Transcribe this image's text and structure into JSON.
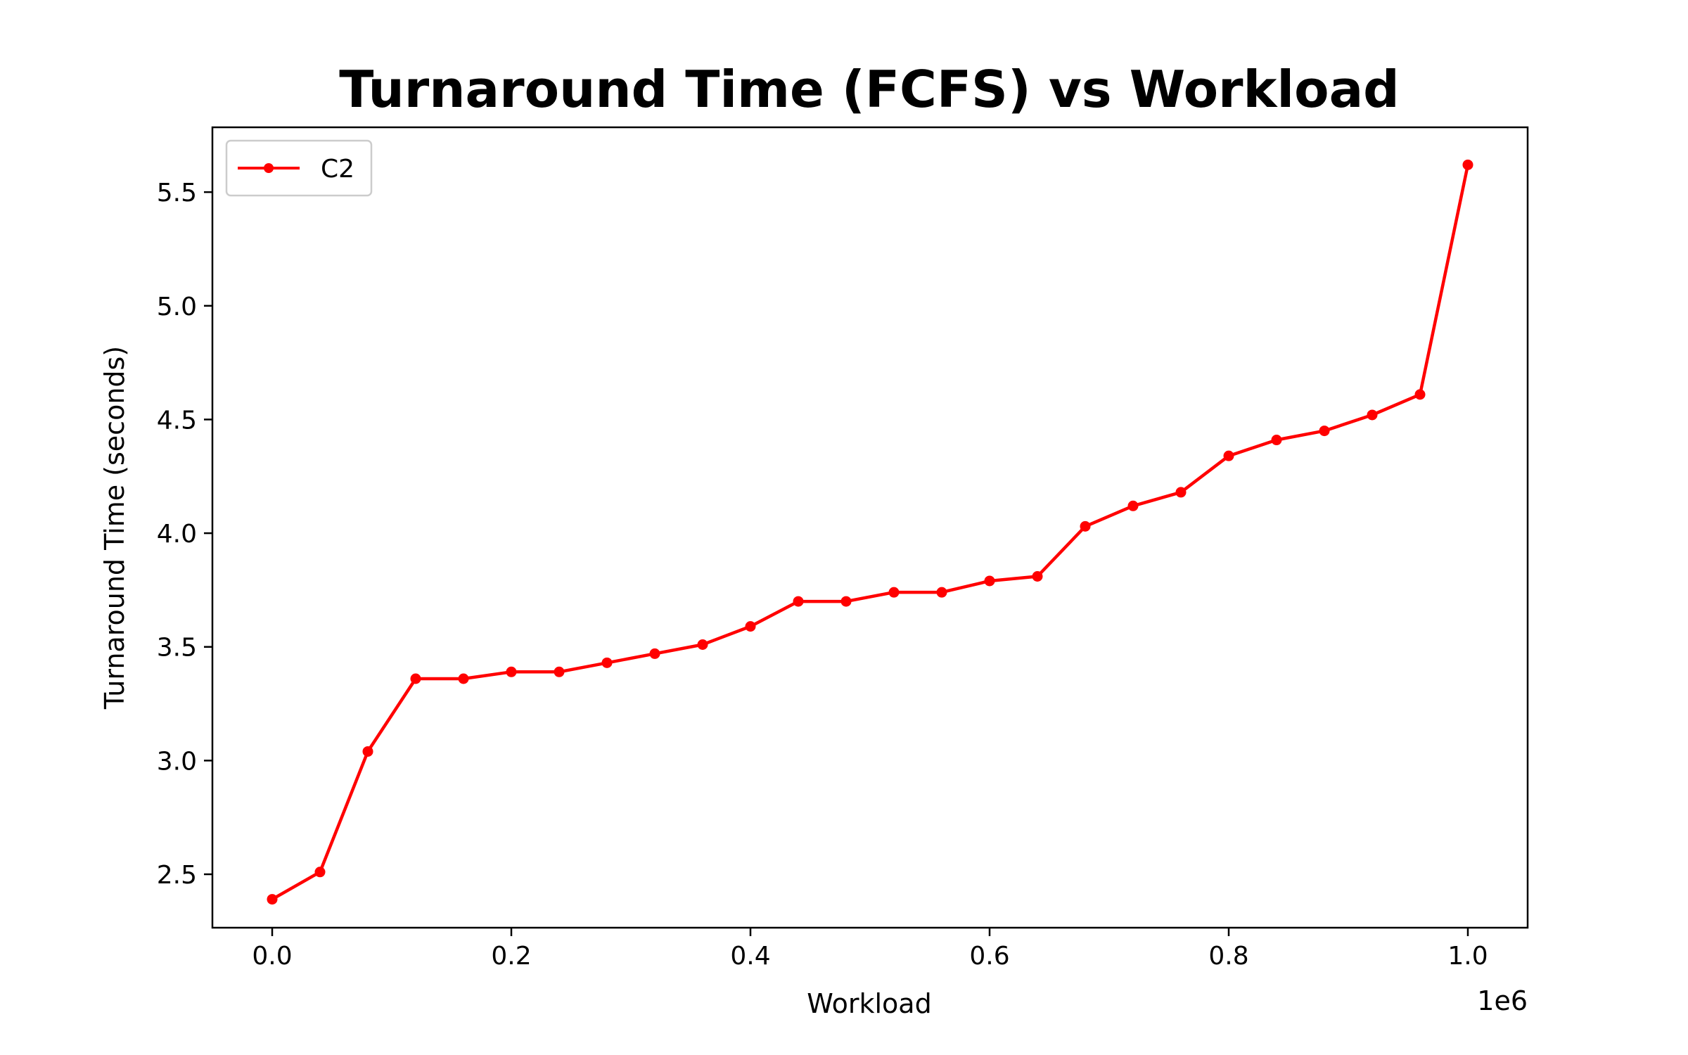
{
  "chart_data": {
    "type": "line",
    "title": "Turnaround Time (FCFS) vs Workload",
    "xlabel": "Workload",
    "ylabel": "Turnaround Time (seconds)",
    "x_offset_label": "1e6",
    "xlim": [
      -50000,
      1050000
    ],
    "ylim": [
      2.265,
      5.785
    ],
    "x_ticks": [
      0,
      200000,
      400000,
      600000,
      800000,
      1000000
    ],
    "x_tick_labels": [
      "0.0",
      "0.2",
      "0.4",
      "0.6",
      "0.8",
      "1.0"
    ],
    "y_ticks": [
      2.5,
      3.0,
      3.5,
      4.0,
      4.5,
      5.0,
      5.5
    ],
    "y_tick_labels": [
      "2.5",
      "3.0",
      "3.5",
      "4.0",
      "4.5",
      "5.0",
      "5.5"
    ],
    "grid": false,
    "legend_position": "top-left",
    "series": [
      {
        "name": "C2",
        "color": "#ff0000",
        "marker": "circle",
        "x": [
          0,
          40000,
          80000,
          120000,
          160000,
          200000,
          240000,
          280000,
          320000,
          360000,
          400000,
          440000,
          480000,
          520000,
          560000,
          600000,
          640000,
          680000,
          720000,
          760000,
          800000,
          840000,
          880000,
          920000,
          960000,
          1000000
        ],
        "y": [
          2.39,
          2.51,
          3.04,
          3.36,
          3.36,
          3.39,
          3.39,
          3.43,
          3.47,
          3.51,
          3.59,
          3.7,
          3.7,
          3.74,
          3.74,
          3.79,
          3.81,
          4.03,
          4.12,
          4.18,
          4.34,
          4.41,
          4.45,
          4.52,
          4.61,
          5.62
        ]
      }
    ]
  }
}
